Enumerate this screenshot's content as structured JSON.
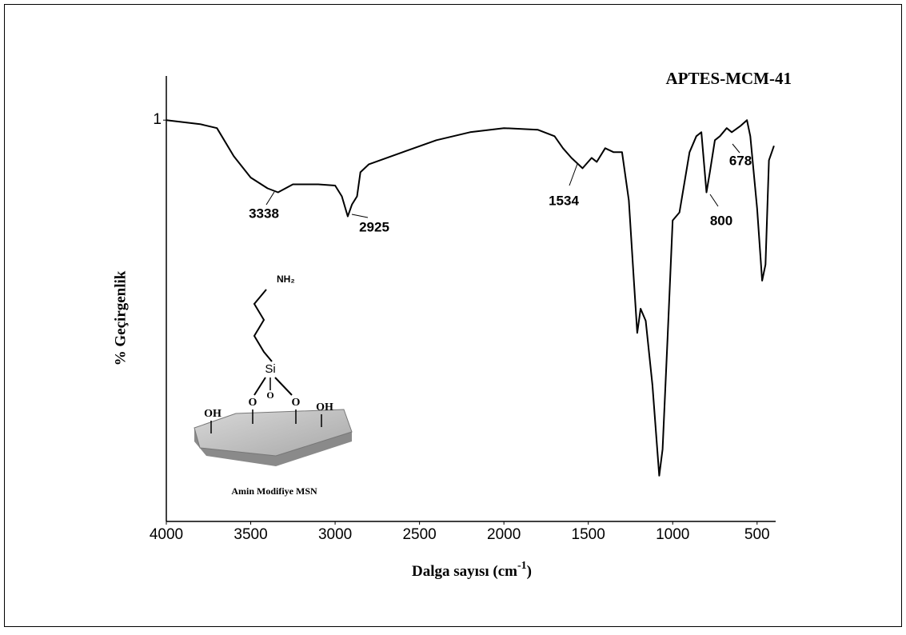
{
  "chart_data": {
    "type": "line",
    "x_label": {
      "text": "Dalga sayısı (cm",
      "sup": "-1",
      "end": ")"
    },
    "y_label": "% Geçirgenlik",
    "xlim": [
      4000,
      390
    ],
    "xticks": [
      4000,
      3500,
      3000,
      2500,
      2000,
      1500,
      1000,
      500
    ],
    "ylim": [
      0,
      1.11
    ],
    "yticks": [
      1
    ],
    "series": [
      {
        "name": "APTES-MCM-41",
        "color": "#000000",
        "x": [
          4000,
          3800,
          3700,
          3600,
          3500,
          3400,
          3338,
          3250,
          3100,
          3000,
          2960,
          2925,
          2900,
          2870,
          2850,
          2800,
          2600,
          2400,
          2200,
          2000,
          1800,
          1700,
          1650,
          1600,
          1534,
          1480,
          1450,
          1400,
          1350,
          1300,
          1260,
          1230,
          1210,
          1190,
          1160,
          1120,
          1080,
          1060,
          1030,
          1000,
          960,
          900,
          860,
          830,
          800,
          780,
          750,
          720,
          680,
          650,
          600,
          560,
          540,
          500,
          470,
          450,
          430,
          400
        ],
        "values": [
          1.0,
          0.99,
          0.98,
          0.91,
          0.857,
          0.83,
          0.82,
          0.84,
          0.84,
          0.837,
          0.81,
          0.76,
          0.79,
          0.81,
          0.87,
          0.89,
          0.92,
          0.95,
          0.97,
          0.98,
          0.976,
          0.96,
          0.93,
          0.906,
          0.88,
          0.906,
          0.896,
          0.93,
          0.92,
          0.92,
          0.8,
          0.6,
          0.47,
          0.53,
          0.5,
          0.34,
          0.114,
          0.18,
          0.46,
          0.75,
          0.77,
          0.92,
          0.96,
          0.97,
          0.82,
          0.87,
          0.95,
          0.96,
          0.98,
          0.97,
          0.985,
          1.0,
          0.96,
          0.78,
          0.6,
          0.64,
          0.9,
          0.936
        ]
      }
    ],
    "annotations": [
      "3338",
      "2925",
      "1534",
      "800",
      "678"
    ],
    "inset": {
      "labels": [
        "NH₂",
        "Si",
        "O",
        "O",
        "O",
        "OH",
        "OH"
      ],
      "caption": "Amin Modifiye MSN"
    }
  }
}
